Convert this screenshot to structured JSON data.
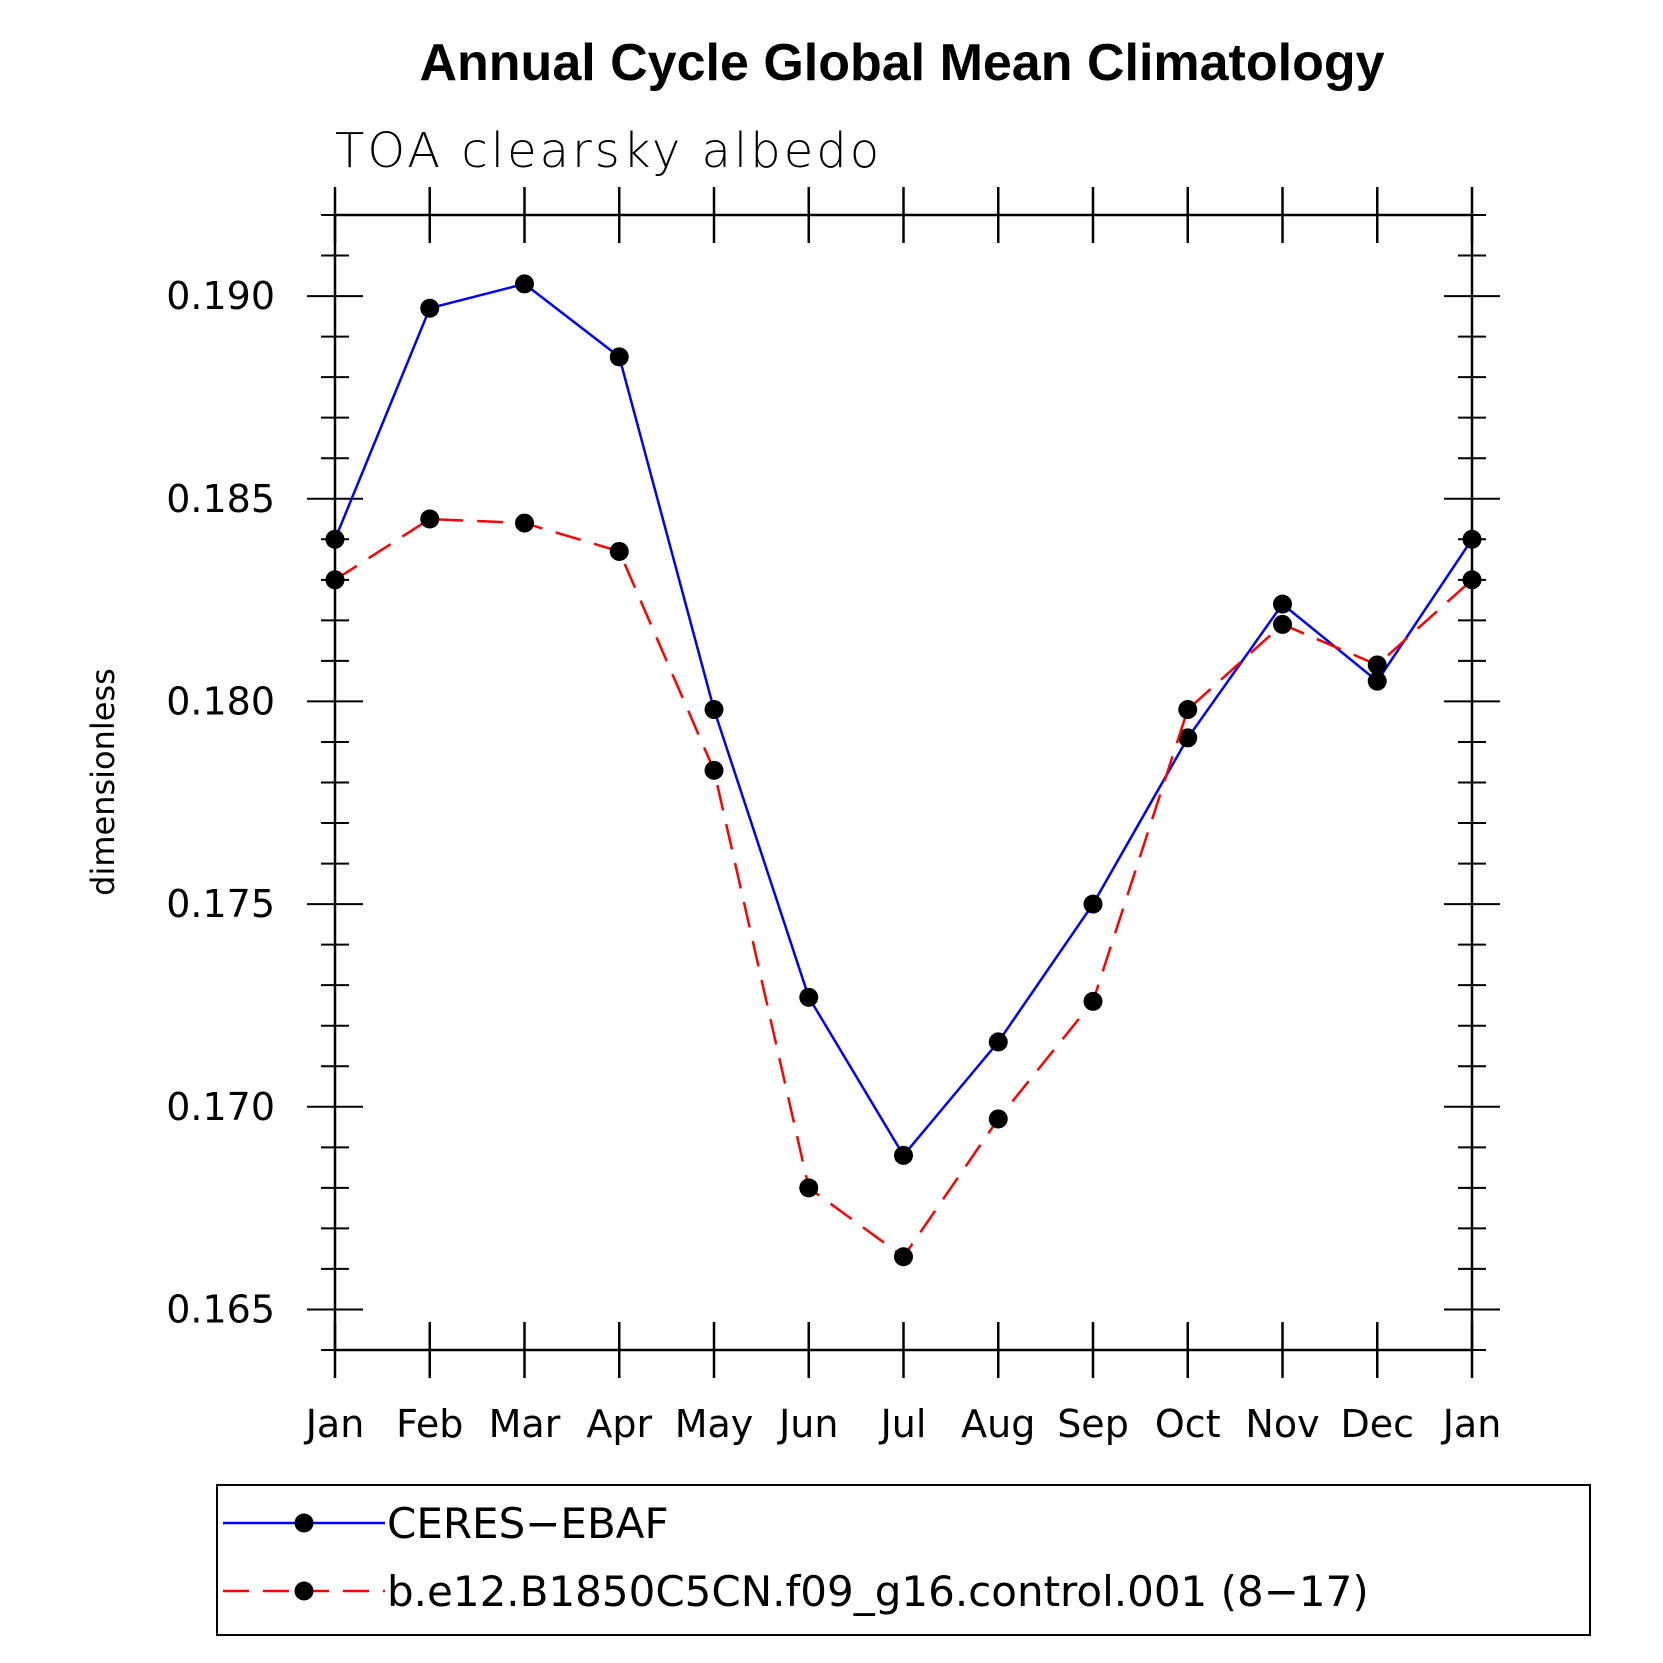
{
  "chart_data": {
    "type": "line",
    "title": "Annual Cycle Global Mean Climatology",
    "subtitle": "TOA clearsky albedo",
    "xlabel": "",
    "ylabel": "dimensionless",
    "categories": [
      "Jan",
      "Feb",
      "Mar",
      "Apr",
      "May",
      "Jun",
      "Jul",
      "Aug",
      "Sep",
      "Oct",
      "Nov",
      "Dec",
      "Jan"
    ],
    "ylim": [
      0.164,
      0.192
    ],
    "yticks": [
      "0.165",
      "0.170",
      "0.175",
      "0.180",
      "0.185",
      "0.190"
    ],
    "ytick_values": [
      0.165,
      0.17,
      0.175,
      0.18,
      0.185,
      0.19
    ],
    "grid": false,
    "legend_position": "bottom",
    "series": [
      {
        "name": "CERES−EBAF",
        "color": "#0000ff",
        "style": "solid",
        "marker": "filled-circle",
        "values": [
          0.184,
          0.1897,
          0.1903,
          0.1885,
          0.1798,
          0.1727,
          0.1688,
          0.1716,
          0.175,
          0.1791,
          0.1824,
          0.1805,
          0.184
        ]
      },
      {
        "name": "b.e12.B1850C5CN.f09_g16.control.001 (8−17)",
        "color": "#ff0000",
        "style": "dashed",
        "marker": "filled-circle",
        "values": [
          0.183,
          0.1845,
          0.1844,
          0.1837,
          0.1783,
          0.168,
          0.1663,
          0.1697,
          0.1726,
          0.1798,
          0.1819,
          0.1809,
          0.183
        ]
      }
    ]
  }
}
